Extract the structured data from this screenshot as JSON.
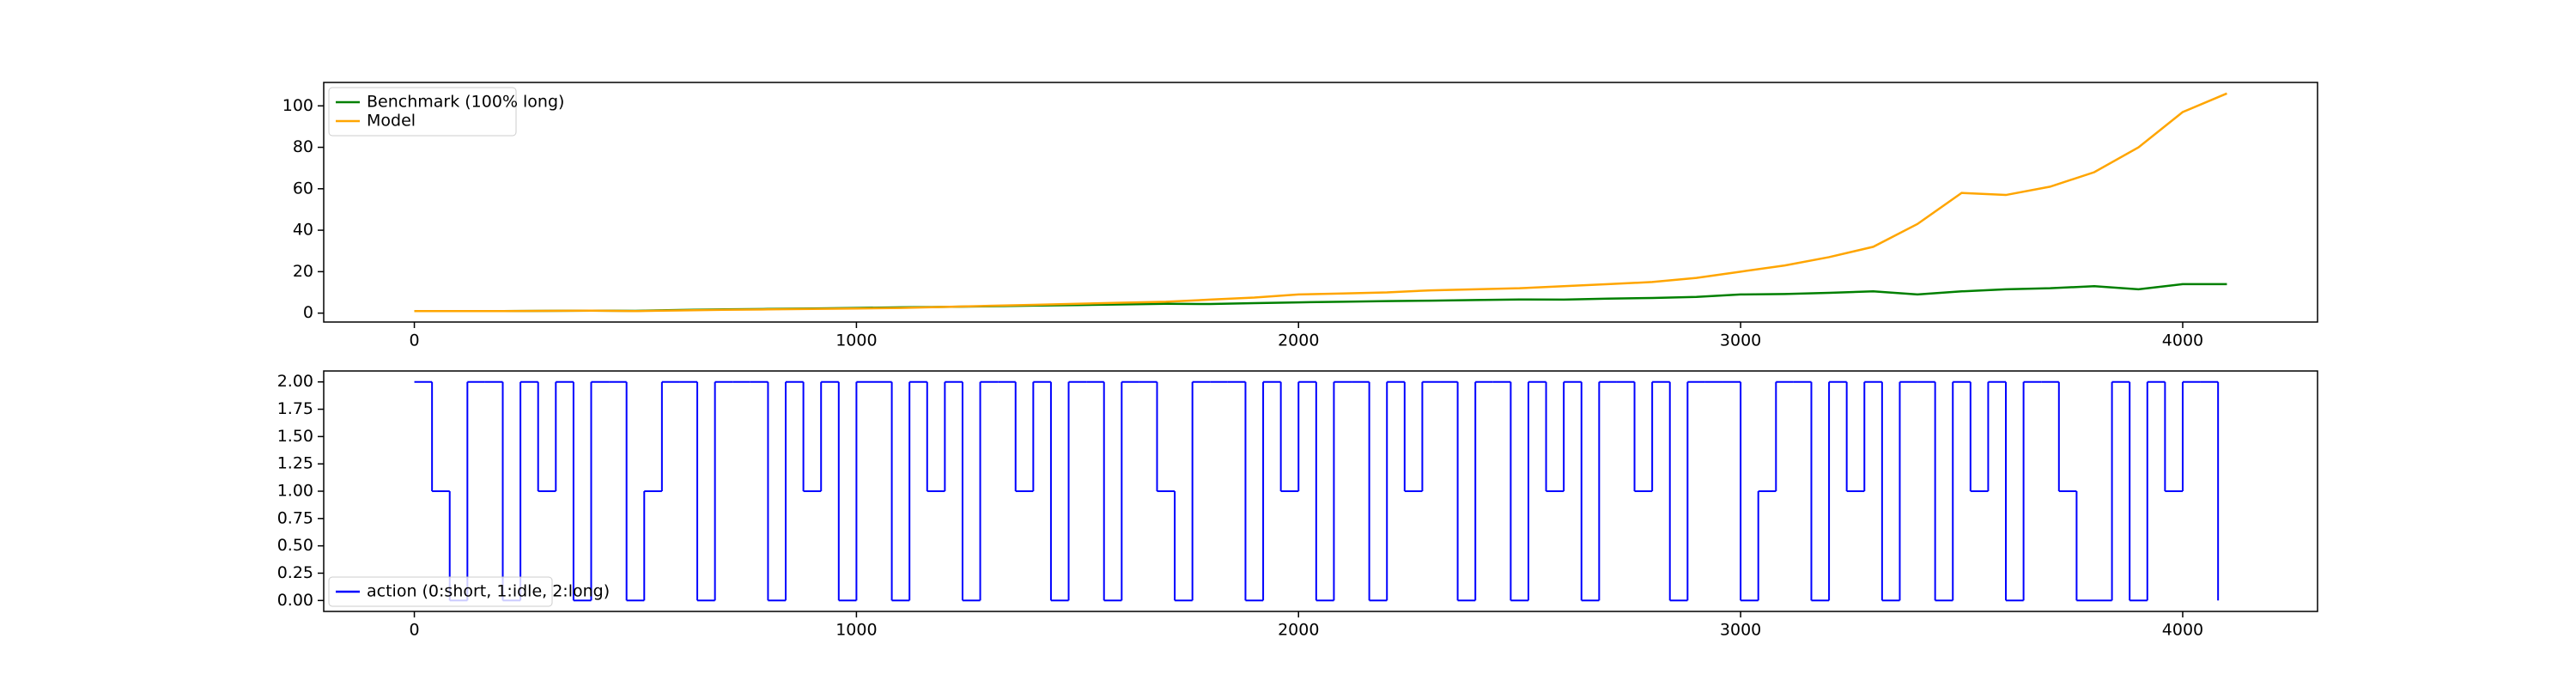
{
  "chart_data": [
    {
      "type": "line",
      "x": [
        0,
        100,
        200,
        300,
        400,
        500,
        600,
        700,
        800,
        900,
        1000,
        1100,
        1200,
        1300,
        1400,
        1500,
        1600,
        1700,
        1800,
        1900,
        2000,
        2100,
        2200,
        2300,
        2400,
        2500,
        2600,
        2700,
        2800,
        2900,
        3000,
        3100,
        3200,
        3300,
        3400,
        3500,
        3600,
        3700,
        3800,
        3900,
        4000,
        4100
      ],
      "series": [
        {
          "name": "Benchmark (100% long)",
          "color": "#008000",
          "values": [
            1,
            1,
            1,
            1.1,
            1.2,
            1.1,
            1.5,
            1.8,
            2,
            2.2,
            2.5,
            2.8,
            3,
            3.3,
            3.6,
            3.9,
            4.2,
            4.5,
            4.4,
            4.8,
            5.2,
            5.5,
            5.8,
            6,
            6.3,
            6.6,
            6.5,
            7,
            7.3,
            7.8,
            9,
            9.2,
            9.8,
            10.5,
            9,
            10.5,
            11.5,
            12,
            13,
            11.5,
            14,
            14
          ]
        },
        {
          "name": "Model",
          "color": "#ffa500",
          "values": [
            1,
            1,
            1,
            1.1,
            1.2,
            1,
            1.3,
            1.6,
            1.8,
            2,
            2.2,
            2.5,
            3,
            3.5,
            4,
            4.5,
            5,
            5.5,
            6.5,
            7.5,
            9,
            9.5,
            10,
            11,
            11.5,
            12,
            13,
            14,
            15,
            17,
            20,
            23,
            27,
            32,
            43,
            58,
            57,
            61,
            68,
            80,
            97,
            106
          ]
        }
      ],
      "xlim": [
        -205,
        4305
      ],
      "ylim": [
        -4.3,
        111.3
      ],
      "xticks": [
        0,
        1000,
        2000,
        3000,
        4000
      ],
      "yticks": [
        0,
        20,
        40,
        60,
        80,
        100
      ],
      "legend": "upper-left"
    },
    {
      "type": "line",
      "step": true,
      "x": [
        0,
        40,
        80,
        120,
        160,
        200,
        240,
        280,
        320,
        360,
        400,
        440,
        480,
        520,
        560,
        600,
        640,
        680,
        720,
        760,
        800,
        840,
        880,
        920,
        960,
        1000,
        1040,
        1080,
        1120,
        1160,
        1200,
        1240,
        1280,
        1320,
        1360,
        1400,
        1440,
        1480,
        1520,
        1560,
        1600,
        1640,
        1680,
        1720,
        1760,
        1800,
        1840,
        1880,
        1920,
        1960,
        2000,
        2040,
        2080,
        2120,
        2160,
        2200,
        2240,
        2280,
        2320,
        2360,
        2400,
        2440,
        2480,
        2520,
        2560,
        2600,
        2640,
        2680,
        2720,
        2760,
        2800,
        2840,
        2880,
        2920,
        2960,
        3000,
        3040,
        3080,
        3120,
        3160,
        3200,
        3240,
        3280,
        3320,
        3360,
        3400,
        3440,
        3480,
        3520,
        3560,
        3600,
        3640,
        3680,
        3720,
        3760,
        3800,
        3840,
        3880,
        3920,
        3960,
        4000,
        4040,
        4080
      ],
      "series": [
        {
          "name": "action (0:short, 1:idle, 2:long)",
          "color": "#0000ff",
          "values": [
            2,
            1,
            0,
            2,
            2,
            0,
            2,
            1,
            2,
            0,
            2,
            2,
            0,
            1,
            2,
            2,
            0,
            2,
            2,
            2,
            0,
            2,
            1,
            2,
            0,
            2,
            2,
            0,
            2,
            1,
            2,
            0,
            2,
            2,
            1,
            2,
            0,
            2,
            2,
            0,
            2,
            2,
            1,
            0,
            2,
            2,
            2,
            0,
            2,
            1,
            2,
            0,
            2,
            2,
            0,
            2,
            1,
            2,
            2,
            0,
            2,
            2,
            0,
            2,
            1,
            2,
            0,
            2,
            2,
            1,
            2,
            0,
            2,
            2,
            2,
            0,
            1,
            2,
            2,
            0,
            2,
            1,
            2,
            0,
            2,
            2,
            0,
            2,
            1,
            2,
            0,
            2,
            2,
            1,
            0,
            0,
            2,
            0,
            2,
            1,
            2,
            2,
            0
          ]
        }
      ],
      "xlim": [
        -205,
        4305
      ],
      "ylim": [
        -0.1,
        2.1
      ],
      "xticks": [
        0,
        1000,
        2000,
        3000,
        4000
      ],
      "yticks": [
        {
          "value": 0,
          "label": "0.00"
        },
        {
          "value": 0.25,
          "label": "0.25"
        },
        {
          "value": 0.5,
          "label": "0.50"
        },
        {
          "value": 0.75,
          "label": "0.75"
        },
        {
          "value": 1,
          "label": "1.00"
        },
        {
          "value": 1.25,
          "label": "1.25"
        },
        {
          "value": 1.5,
          "label": "1.50"
        },
        {
          "value": 1.75,
          "label": "1.75"
        },
        {
          "value": 2,
          "label": "2.00"
        }
      ],
      "legend": "lower-left"
    }
  ]
}
